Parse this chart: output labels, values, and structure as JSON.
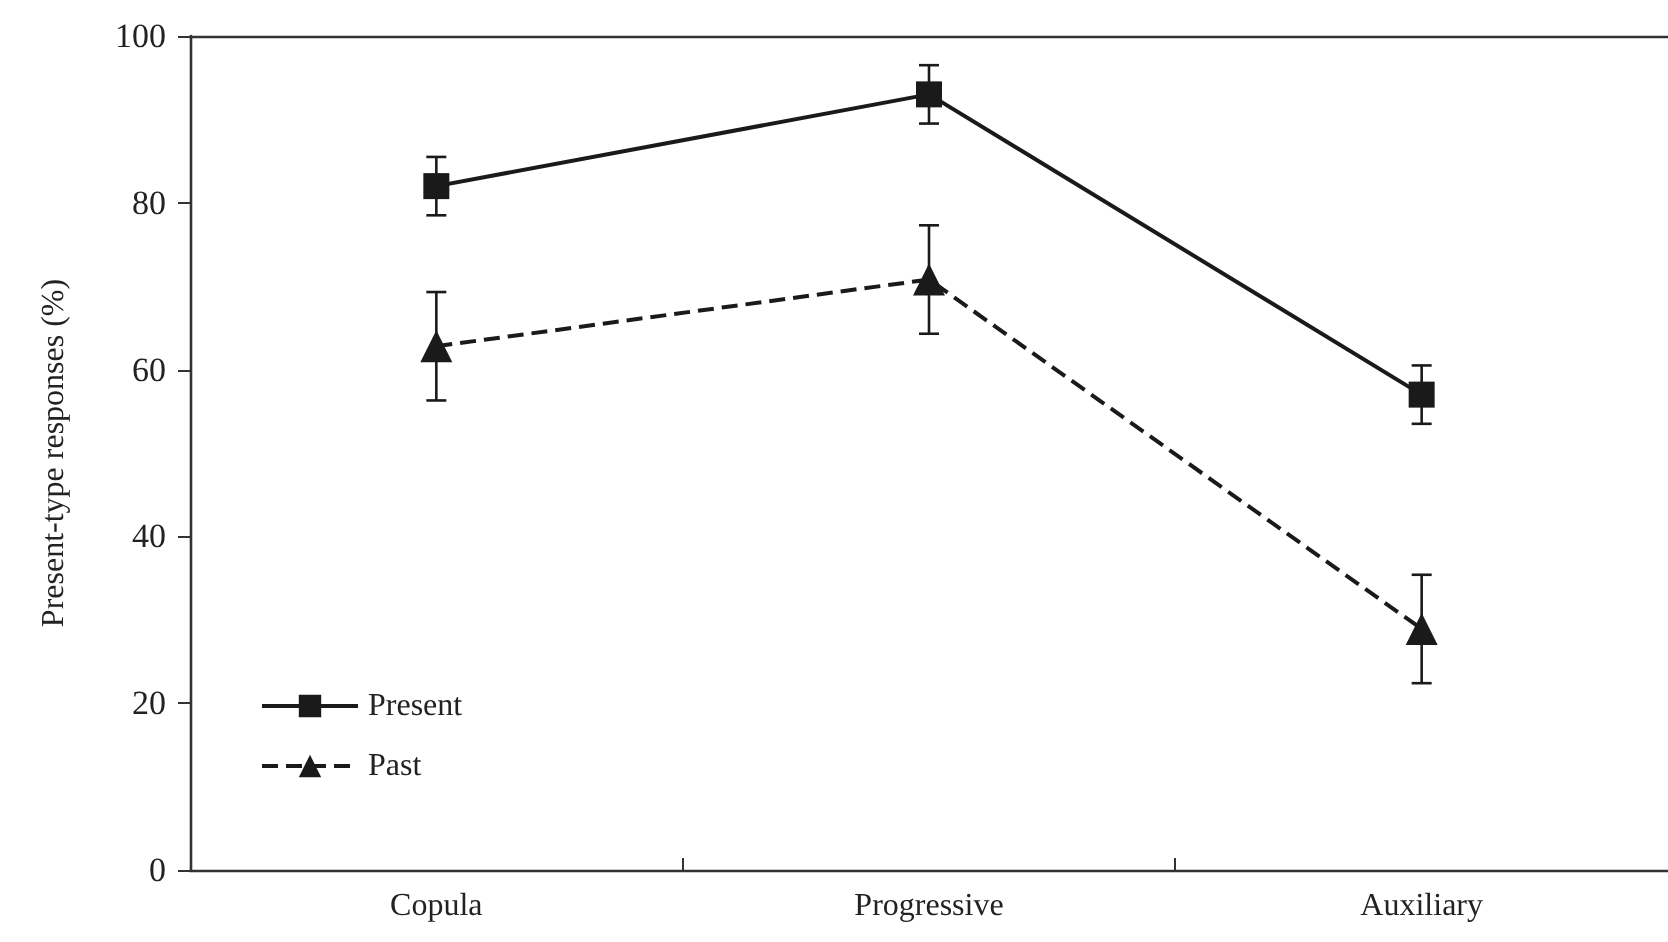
{
  "chart_data": {
    "type": "line",
    "ylabel": "Present-type responses (%)",
    "categories": [
      "Copula",
      "Progressive",
      "Auxiliary"
    ],
    "series": [
      {
        "name": "Present",
        "color": "#1a1a1a",
        "marker": "square",
        "line_style": "solid",
        "values": [
          82,
          93,
          57
        ],
        "errors": [
          3.5,
          3.5,
          3.5
        ]
      },
      {
        "name": "Past",
        "color": "#1a1a1a",
        "marker": "triangle",
        "line_style": "dashed",
        "values": [
          62.8,
          70.8,
          28.9
        ],
        "errors": [
          6.5,
          6.5,
          6.5
        ]
      }
    ],
    "ylim": [
      0,
      100
    ],
    "yticks": [
      0,
      20,
      40,
      60,
      80,
      100
    ],
    "grid": false,
    "legend": "bottom left"
  }
}
